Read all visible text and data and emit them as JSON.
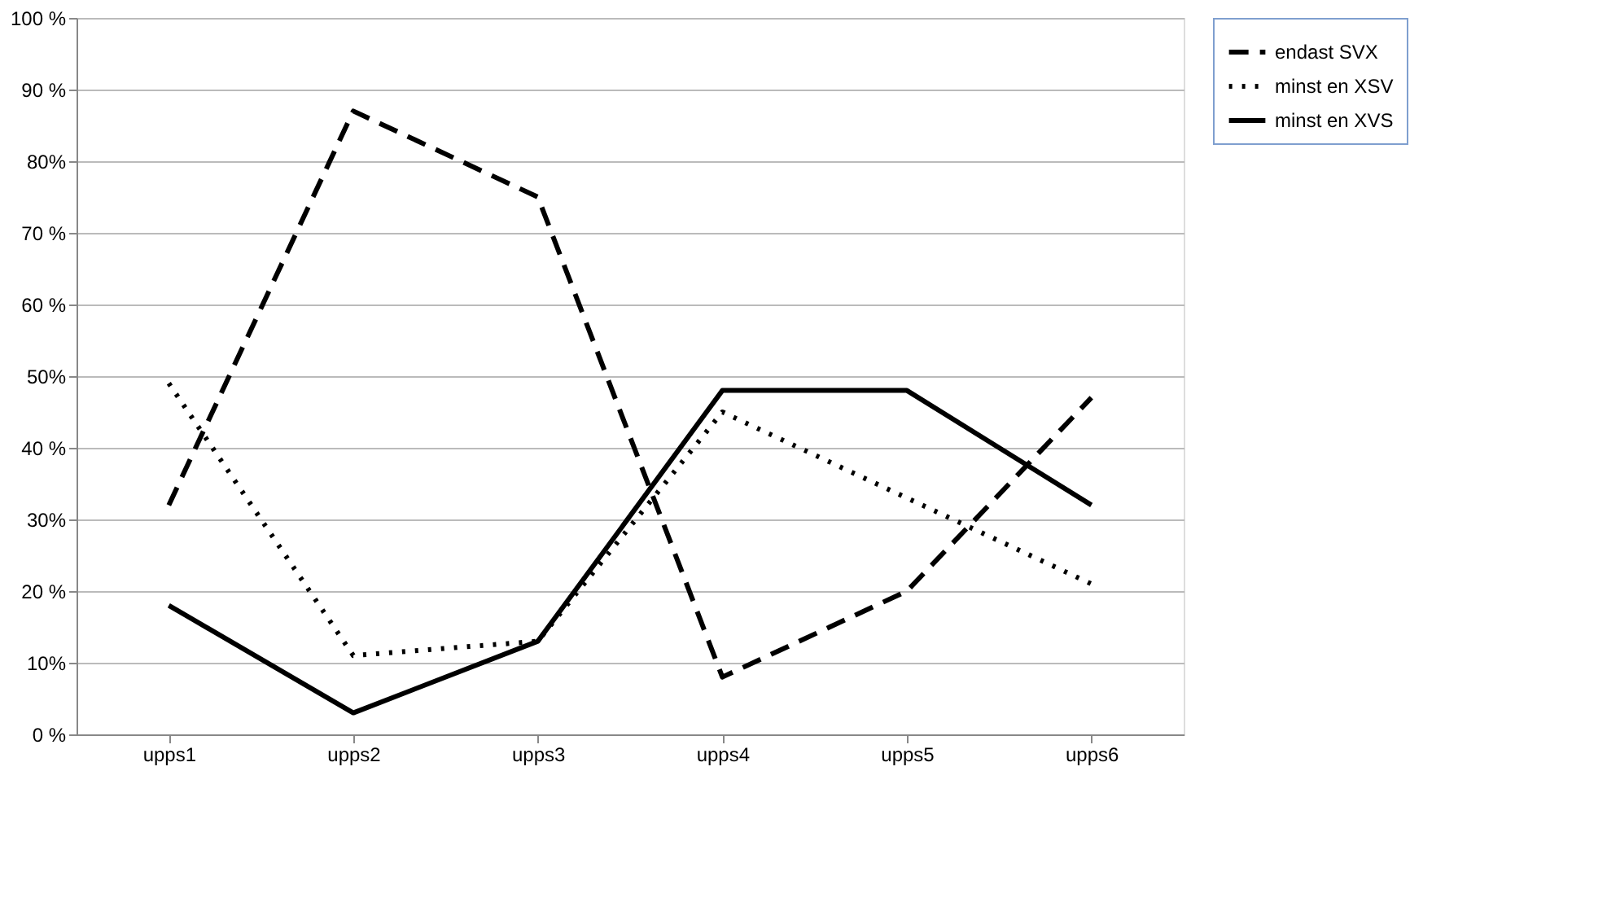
{
  "chart_data": {
    "type": "line",
    "categories": [
      "upps1",
      "upps2",
      "upps3",
      "upps4",
      "upps5",
      "upps6"
    ],
    "series": [
      {
        "name": "endast SVX",
        "color": "#000000",
        "line_style": "dashed",
        "values": [
          32,
          87,
          75,
          8,
          20,
          47
        ]
      },
      {
        "name": "minst en XSV",
        "color": "#000000",
        "line_style": "dotted",
        "values": [
          49,
          11,
          13,
          45,
          33,
          21
        ]
      },
      {
        "name": "minst en XVS",
        "color": "#000000",
        "line_style": "solid",
        "values": [
          18,
          3,
          13,
          48,
          48,
          32
        ]
      }
    ],
    "ylim": [
      0,
      100
    ],
    "yticks": [
      {
        "value": 0,
        "label": "0 %"
      },
      {
        "value": 10,
        "label": "10%"
      },
      {
        "value": 20,
        "label": "20 %"
      },
      {
        "value": 30,
        "label": "30%"
      },
      {
        "value": 40,
        "label": "40 %"
      },
      {
        "value": 50,
        "label": "50%"
      },
      {
        "value": 60,
        "label": "60 %"
      },
      {
        "value": 70,
        "label": "70 %"
      },
      {
        "value": 80,
        "label": "80%"
      },
      {
        "value": 90,
        "label": "90 %"
      },
      {
        "value": 100,
        "label": "100 %"
      }
    ],
    "grid": "y",
    "legend": "right",
    "marker": "none"
  }
}
